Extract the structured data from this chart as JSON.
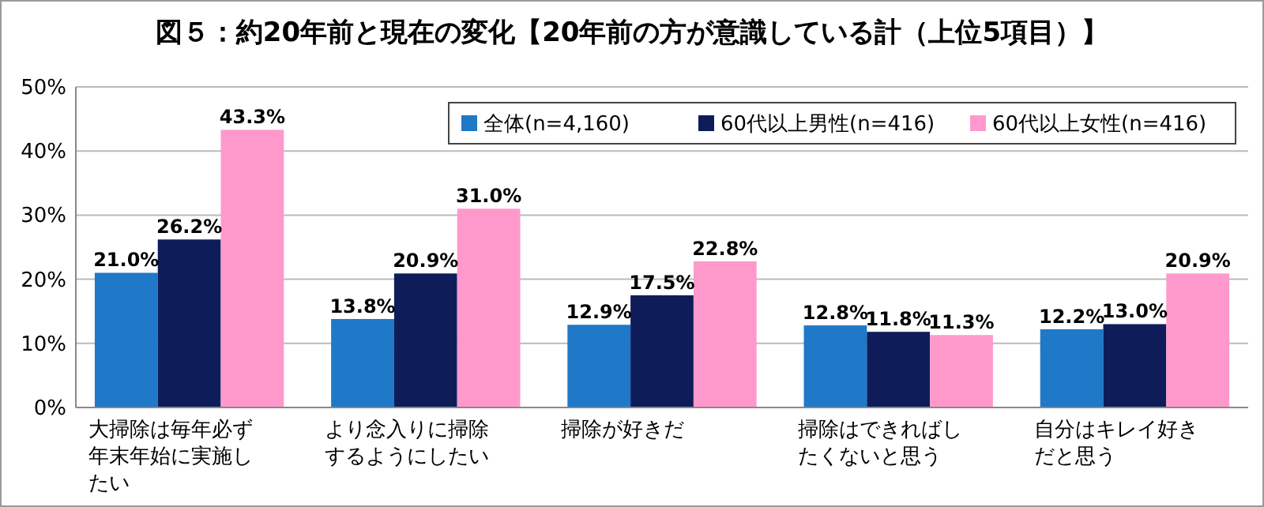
{
  "chart_data": {
    "type": "bar",
    "title": "図５：約20年前と現在の変化【20年前の方が意識している計（上位5項目）】",
    "categories": [
      "大掃除は毎年必ず年末年始に実施したい",
      "より念入りに掃除するようにしたい",
      "掃除が好きだ",
      "掃除はできればしたくないと思う",
      "自分はキレイ好きだと思う"
    ],
    "series": [
      {
        "name": "全体(n=4,160)",
        "color": "#1f78c8",
        "values": [
          21.0,
          13.8,
          12.9,
          12.8,
          12.2
        ],
        "value_labels": [
          "21.0%",
          "13.8%",
          "12.9%",
          "12.8%",
          "12.2%"
        ]
      },
      {
        "name": "60代以上男性(n=416)",
        "color": "#0e1d5a",
        "values": [
          26.2,
          20.9,
          17.5,
          11.8,
          13.0
        ],
        "value_labels": [
          "26.2%",
          "20.9%",
          "17.5%",
          "11.8%",
          "13.0%"
        ]
      },
      {
        "name": "60代以上女性(n=416)",
        "color": "#ff99cc",
        "values": [
          43.3,
          31.0,
          22.8,
          11.3,
          20.9
        ],
        "value_labels": [
          "43.3%",
          "31.0%",
          "22.8%",
          "11.3%",
          "20.9%"
        ]
      }
    ],
    "ylim": [
      0,
      50
    ],
    "yticks": [
      {
        "value": 0,
        "label": "0%"
      },
      {
        "value": 10,
        "label": "10%"
      },
      {
        "value": 20,
        "label": "20%"
      },
      {
        "value": 30,
        "label": "30%"
      },
      {
        "value": 40,
        "label": "40%"
      },
      {
        "value": 50,
        "label": "50%"
      }
    ],
    "grid": "y",
    "legend": "top right"
  }
}
